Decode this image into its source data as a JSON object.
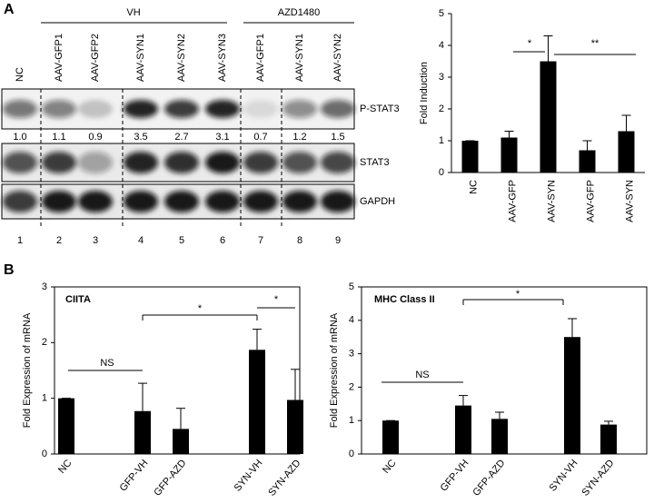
{
  "panel_labels": [
    "A",
    "B"
  ],
  "blot": {
    "groups": [
      "VH",
      "AZD1480"
    ],
    "lanes": [
      "NC",
      "AAV-GFP1",
      "AAV-GFP2",
      "AAV-SYN1",
      "AAV-SYN2",
      "AAV-SYN3",
      "AAV-GFP1",
      "AAV-SYN1",
      "AAV-SYN2"
    ],
    "rows": [
      "P-STAT3",
      "STAT3",
      "GAPDH"
    ],
    "quantification": [
      "1.0",
      "1.1",
      "0.9",
      "3.5",
      "2.7",
      "3.1",
      "0.7",
      "1.2",
      "1.5"
    ],
    "lane_numbers": [
      "1",
      "2",
      "3",
      "4",
      "5",
      "6",
      "7",
      "8",
      "9"
    ]
  },
  "chart_data": [
    {
      "type": "bar",
      "ylabel": "Fold Induction",
      "categories": [
        "NC",
        "AAV-GFP",
        "AAV-SYN",
        "AAV-GFP",
        "AAV-SYN"
      ],
      "values": [
        1,
        1.1,
        3.5,
        0.7,
        1.3
      ],
      "errors": [
        0,
        0.2,
        0.8,
        0.3,
        0.5
      ],
      "color": "#000000",
      "ylim": [
        0,
        5
      ],
      "yticks": [
        0,
        1,
        2,
        3,
        4,
        5
      ],
      "annotations": [
        "*",
        "**"
      ]
    },
    {
      "type": "bar",
      "title": "CIITA",
      "ylabel": "Fold Expression of mRNA",
      "categories": [
        "NC",
        null,
        "GFP-VH",
        "GFP-AZD",
        null,
        "SYN-VH",
        "SYN-AZD"
      ],
      "values": [
        1.0,
        null,
        0.77,
        0.45,
        null,
        1.87,
        0.97
      ],
      "errors": [
        0,
        null,
        0.5,
        0.37,
        null,
        0.37,
        0.55
      ],
      "color": "#000000",
      "ylim": [
        0,
        3
      ],
      "yticks": [
        0,
        1,
        2,
        3
      ],
      "annotations": [
        "NS",
        "*",
        "*"
      ]
    },
    {
      "type": "bar",
      "title": "MHC Class II",
      "ylabel": "Fold Expression of mRNA",
      "categories": [
        "NC",
        null,
        "GFP-VH",
        "GFP-AZD",
        null,
        "SYN-VH",
        "SYN-AZD"
      ],
      "values": [
        1.0,
        null,
        1.45,
        1.05,
        null,
        3.5,
        0.88
      ],
      "errors": [
        0,
        null,
        0.3,
        0.2,
        null,
        0.55,
        0.1
      ],
      "color": "#000000",
      "ylim": [
        0,
        5
      ],
      "yticks": [
        0,
        1,
        2,
        3,
        4,
        5
      ],
      "annotations": [
        "NS",
        "*"
      ]
    }
  ]
}
